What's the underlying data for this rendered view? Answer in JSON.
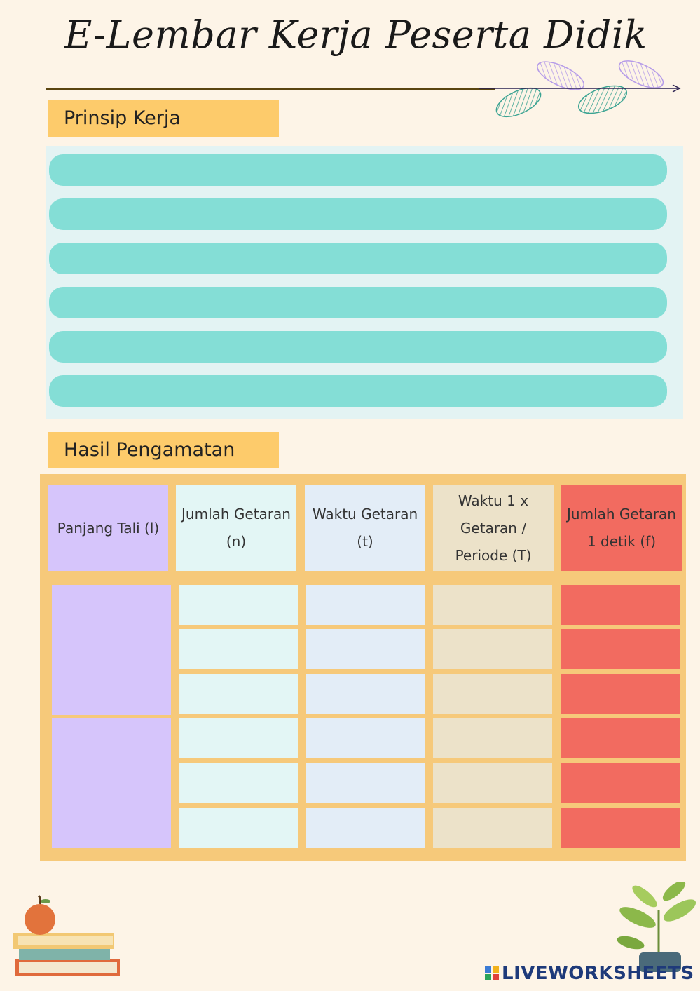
{
  "title": "E-Lembar Kerja Peserta Didik",
  "sections": {
    "prinsip": {
      "label": "Prinsip Kerja",
      "line_count": 6
    },
    "hasil": {
      "label": "Hasil Pengamatan"
    }
  },
  "table": {
    "headers": [
      {
        "text": "Panjang Tali (l)",
        "color": "#d6c5fb"
      },
      {
        "text": "Jumlah Getaran (n)",
        "color": "#e3f6f5"
      },
      {
        "text": "Waktu Getaran (t)",
        "color": "#e3edf7"
      },
      {
        "text": "Waktu 1 x Getaran / Periode (T)",
        "color": "#ece2c9"
      },
      {
        "text": "Jumlah Getaran 1 detik (f)",
        "color": "#f26b60"
      }
    ],
    "rows": 6,
    "length_groups": 2
  },
  "colors": {
    "background": "#fdf4e7",
    "label_fill": "#fdcb6b",
    "answer_line": "#84ded6",
    "table_frame": "#f6c97a"
  },
  "watermark": "LIVEWORKSHEETS"
}
